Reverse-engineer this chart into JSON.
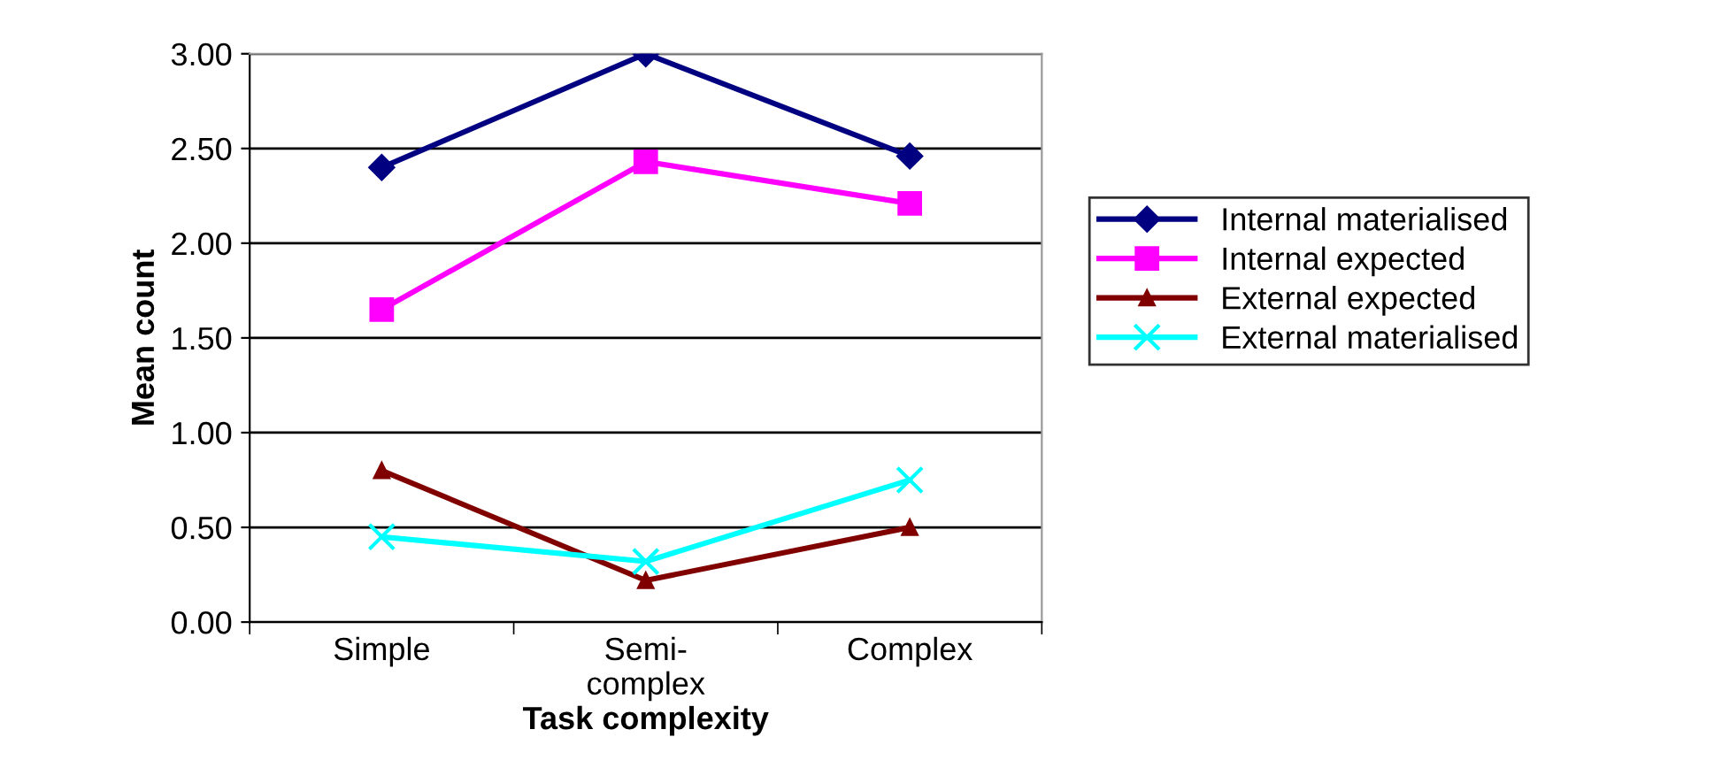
{
  "chart_data": {
    "type": "line",
    "xlabel": "Task complexity",
    "ylabel": "Mean count",
    "categories": [
      "Simple",
      "Semi-\ncomplex",
      "Complex"
    ],
    "series": [
      {
        "name": "Internal materialised",
        "color": "#000080",
        "marker": "diamond",
        "values": [
          2.4,
          3.0,
          2.46
        ]
      },
      {
        "name": "Internal expected",
        "color": "#ff00ff",
        "marker": "square",
        "values": [
          1.65,
          2.43,
          2.21
        ]
      },
      {
        "name": "External expected",
        "color": "#800000",
        "marker": "triangle",
        "values": [
          0.8,
          0.22,
          0.5
        ]
      },
      {
        "name": "External materialised",
        "color": "#00ffff",
        "marker": "cross",
        "values": [
          0.45,
          0.32,
          0.75
        ]
      }
    ],
    "ylim": [
      0,
      3
    ],
    "yticks": [
      {
        "value": 0,
        "label": "0.00"
      },
      {
        "value": 0.5,
        "label": "0.50"
      },
      {
        "value": 1,
        "label": "1.00"
      },
      {
        "value": 1.5,
        "label": "1.50"
      },
      {
        "value": 2,
        "label": "2.00"
      },
      {
        "value": 2.5,
        "label": "2.50"
      },
      {
        "value": 3,
        "label": "3.00"
      }
    ],
    "grid": "y",
    "legend": "right"
  }
}
